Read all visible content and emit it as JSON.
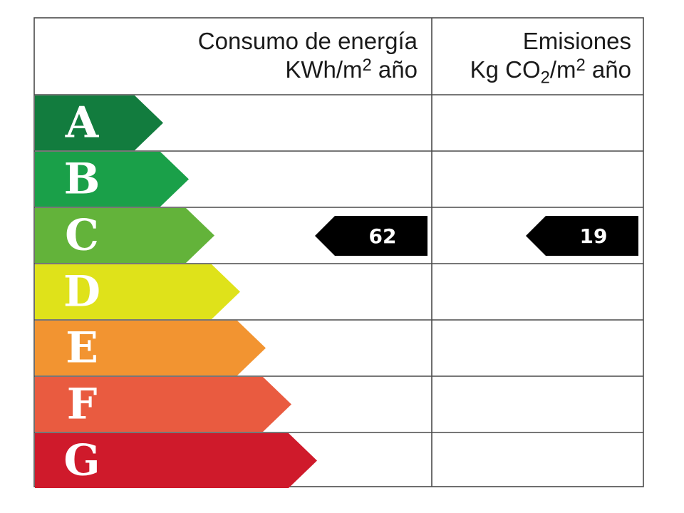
{
  "header": {
    "energy_line1": "Consumo de energía",
    "energy_unit_pre": "KWh/m",
    "energy_unit_sup": "2",
    "energy_unit_post": " año",
    "emissions_line1": "Emisiones",
    "emissions_unit_pre": "Kg CO",
    "emissions_unit_sub": "2",
    "emissions_unit_mid": "/m",
    "emissions_unit_sup": "2",
    "emissions_unit_post": " año"
  },
  "ratings": [
    {
      "letter": "A",
      "color": "#127c3e"
    },
    {
      "letter": "B",
      "color": "#1aa049"
    },
    {
      "letter": "C",
      "color": "#63b33a"
    },
    {
      "letter": "D",
      "color": "#dfe21a"
    },
    {
      "letter": "E",
      "color": "#f29431"
    },
    {
      "letter": "F",
      "color": "#e95b40"
    },
    {
      "letter": "G",
      "color": "#cf1a2b"
    }
  ],
  "result": {
    "class": "C",
    "energy_value": "62",
    "emissions_value": "19",
    "marker_color": "#000000"
  }
}
